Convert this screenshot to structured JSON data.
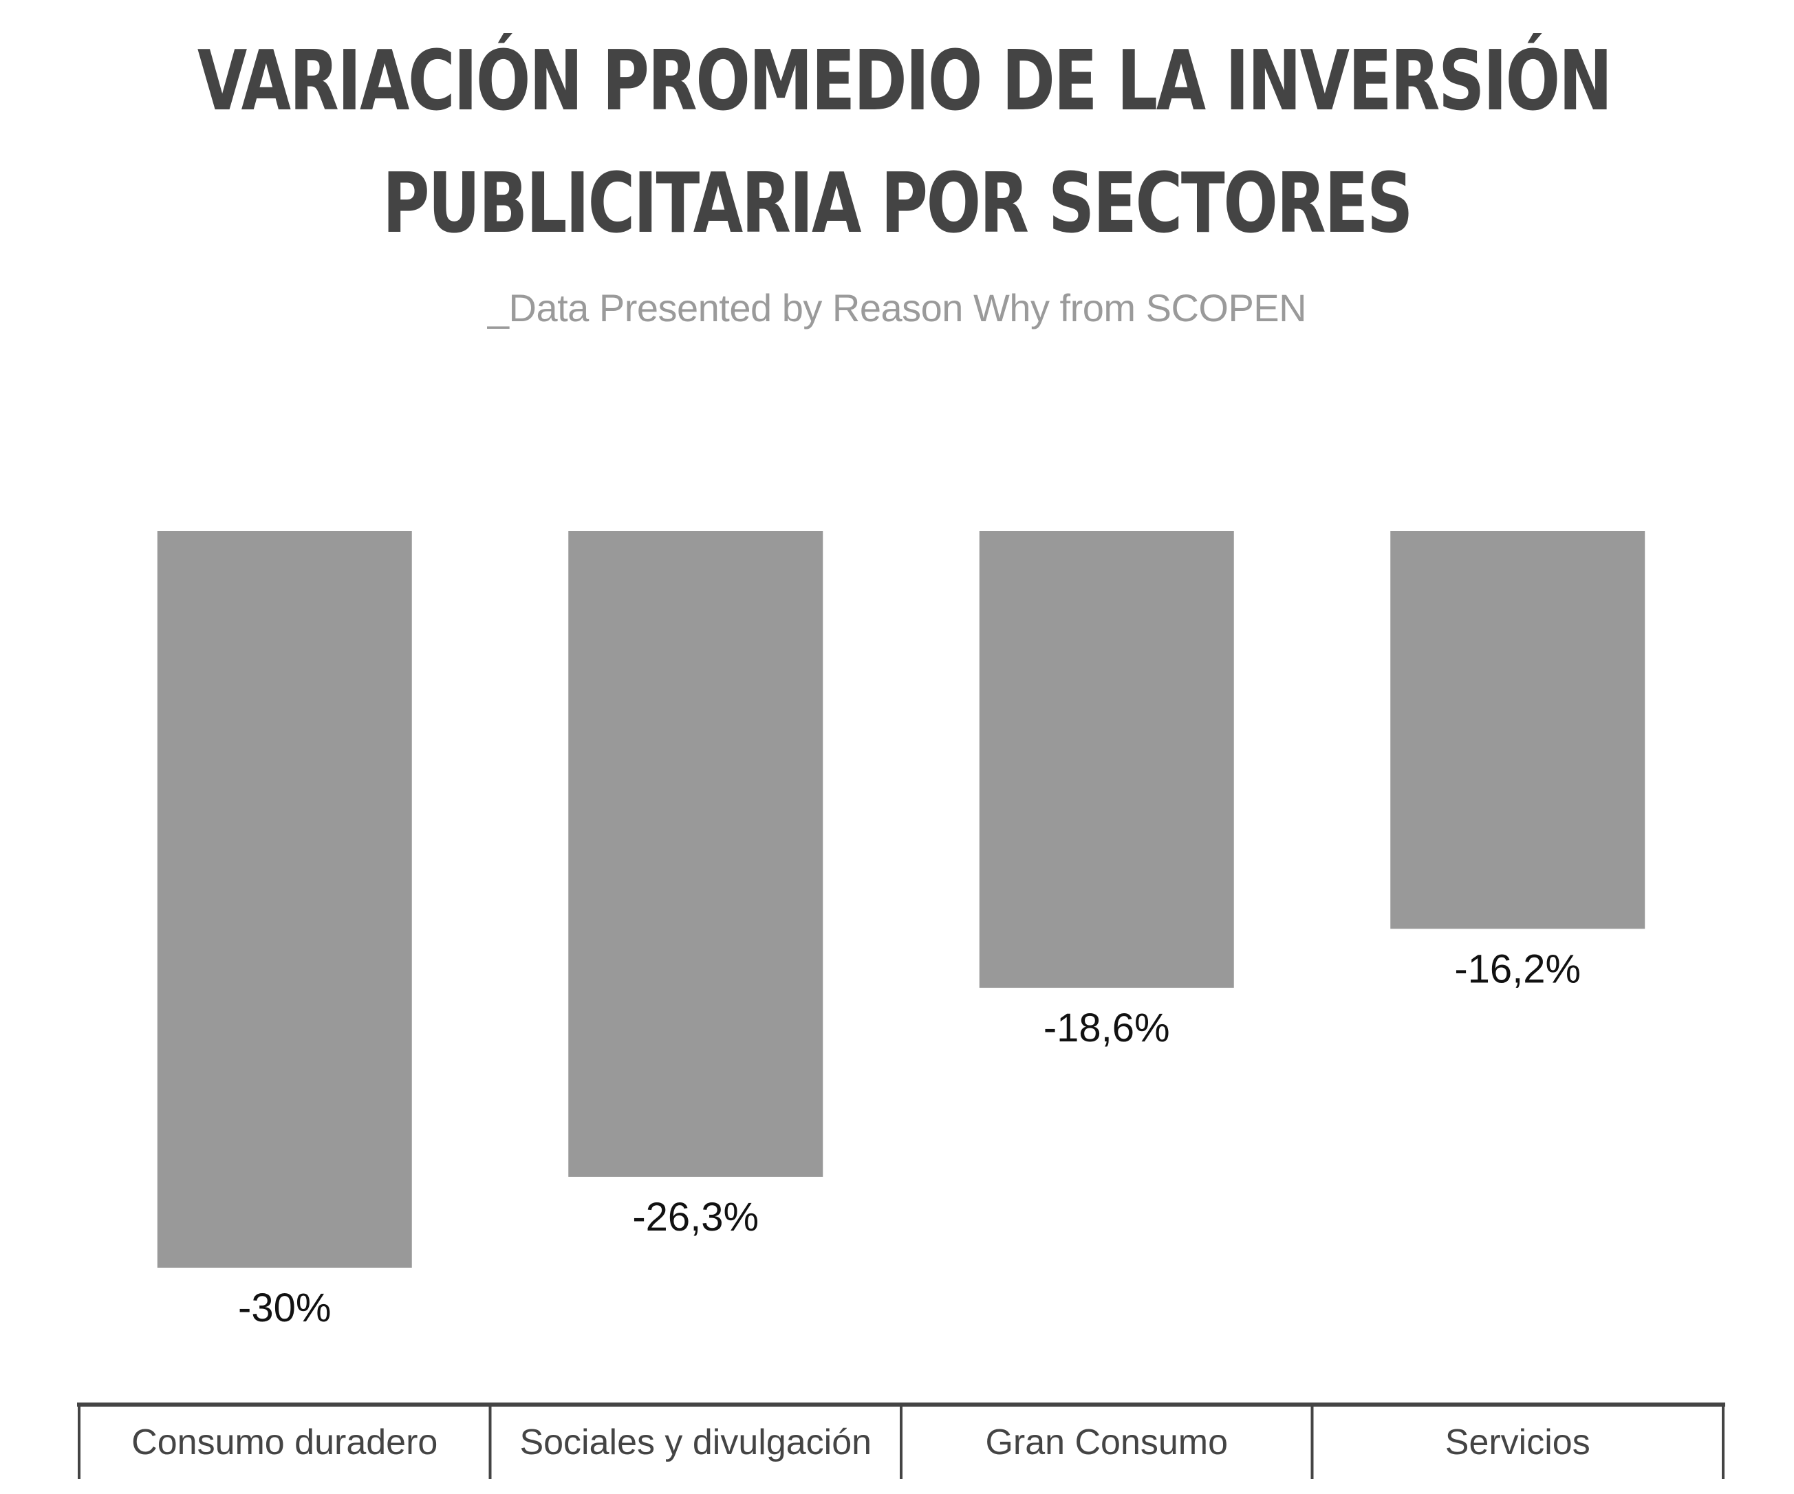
{
  "chart_data": {
    "type": "bar",
    "title": "VARIACIÓN PROMEDIO DE LA INVERSIÓN PUBLICITARIA POR SECTORES",
    "title_lines": [
      "VARIACIÓN PROMEDIO DE LA INVERSIÓN",
      "PUBLICITARIA POR SECTORES"
    ],
    "subtitle": "_Data Presented by Reason Why from SCOPEN",
    "categories": [
      "Consumo duradero",
      "Sociales y divulgación",
      "Gran Consumo",
      "Servicios"
    ],
    "values": [
      -30,
      -26.3,
      -18.6,
      -16.2
    ],
    "value_labels": [
      "-30%",
      "-26,3%",
      "-18,6%",
      "-16,2%"
    ],
    "xlabel": "",
    "ylabel": "",
    "ylim": [
      -30,
      0
    ],
    "grid": false,
    "legend": "none",
    "bar_color": "#999999",
    "axis_color": "#444444"
  }
}
